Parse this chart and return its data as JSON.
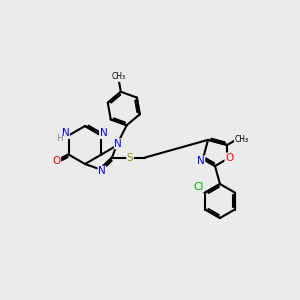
{
  "bg_color": "#ebebeb",
  "bond_color": "#000000",
  "bond_width": 1.5,
  "atom_colors": {
    "N": "#0000ff",
    "O": "#ff0000",
    "S": "#999900",
    "Cl": "#00aa00",
    "C": "#000000",
    "H": "#888888"
  },
  "font_size": 7,
  "title": ""
}
